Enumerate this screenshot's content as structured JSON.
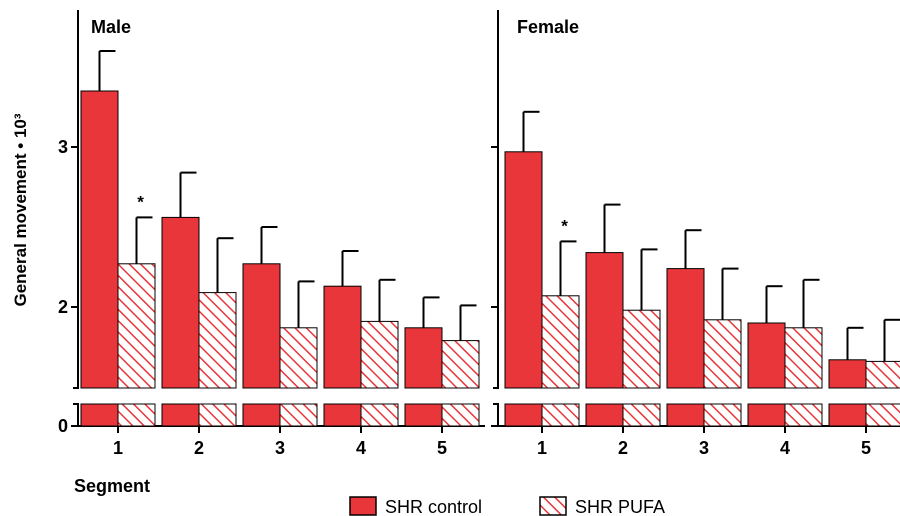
{
  "chart_data": {
    "type": "bar",
    "ylabel": "General movement • 10³",
    "xlabel": "Segment",
    "categories": [
      "1",
      "2",
      "3",
      "4",
      "5"
    ],
    "y_ticks": [
      "0",
      "2",
      "3"
    ],
    "y_axis_break": true,
    "legend": {
      "placement": "bottom"
    },
    "colors": {
      "control": "#e8363a",
      "pufa_hatch": "#e8363a",
      "pufa_fill": "#ffffff"
    },
    "series_names": [
      "SHR control",
      "SHR PUFA"
    ],
    "panels": [
      {
        "title": "Male",
        "series": [
          {
            "name": "SHR control",
            "values": [
              3.35,
              2.56,
              2.27,
              2.13,
              1.87
            ],
            "errors": [
              0.25,
              0.28,
              0.23,
              0.22,
              0.19
            ]
          },
          {
            "name": "SHR PUFA",
            "values": [
              2.27,
              2.09,
              1.87,
              1.91,
              1.79
            ],
            "errors": [
              0.29,
              0.34,
              0.29,
              0.26,
              0.22
            ]
          }
        ],
        "annotations": [
          {
            "category": "1",
            "series": "SHR PUFA",
            "text": "*"
          }
        ]
      },
      {
        "title": "Female",
        "series": [
          {
            "name": "SHR control",
            "values": [
              2.97,
              2.34,
              2.24,
              1.9,
              1.67
            ],
            "errors": [
              0.25,
              0.3,
              0.24,
              0.23,
              0.2
            ]
          },
          {
            "name": "SHR PUFA",
            "values": [
              2.07,
              1.98,
              1.92,
              1.87,
              1.66
            ],
            "errors": [
              0.34,
              0.38,
              0.32,
              0.3,
              0.26
            ]
          }
        ],
        "annotations": [
          {
            "category": "1",
            "series": "SHR PUFA",
            "text": "*"
          }
        ]
      }
    ]
  }
}
